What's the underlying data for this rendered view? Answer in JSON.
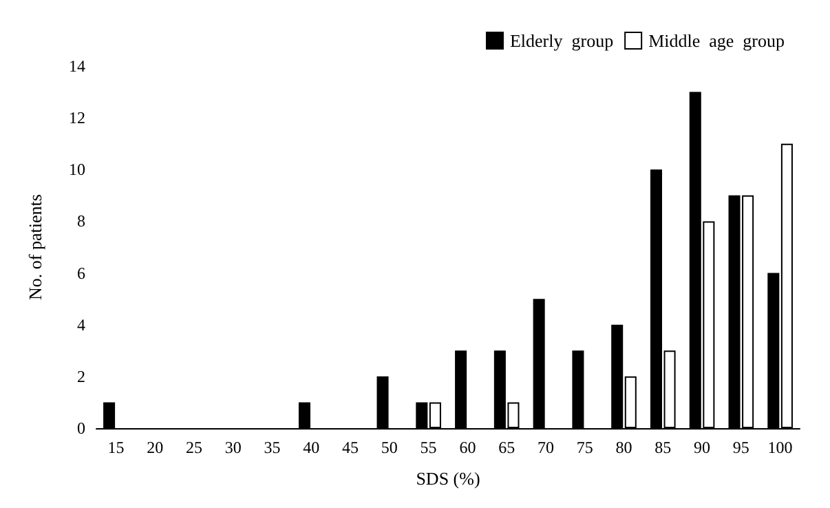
{
  "chart_data": {
    "type": "bar",
    "xlabel": "SDS (%)",
    "ylabel": "No. of patients",
    "categories": [
      "15",
      "20",
      "25",
      "30",
      "35",
      "40",
      "45",
      "50",
      "55",
      "60",
      "65",
      "70",
      "75",
      "80",
      "85",
      "90",
      "95",
      "100"
    ],
    "series": [
      {
        "name": "Elderly  group",
        "color": "#000000",
        "values": [
          1,
          0,
          0,
          0,
          0,
          1,
          0,
          2,
          1,
          3,
          3,
          5,
          3,
          4,
          10,
          13,
          9,
          6
        ]
      },
      {
        "name": "Middle  age  group",
        "color": "#ffffff",
        "values": [
          0,
          0,
          0,
          0,
          0,
          0,
          0,
          0,
          1,
          0,
          1,
          0,
          0,
          2,
          3,
          8,
          9,
          11
        ]
      }
    ],
    "ylim": [
      0,
      14
    ],
    "yticks": [
      0,
      2,
      4,
      6,
      8,
      10,
      12,
      14
    ],
    "grid": false,
    "legend": "top right"
  }
}
